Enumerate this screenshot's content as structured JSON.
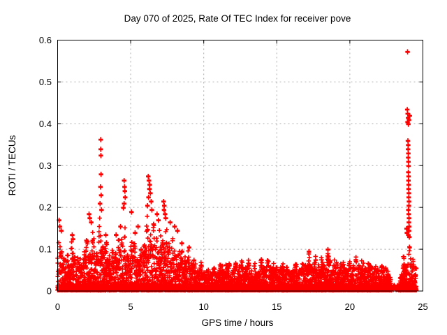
{
  "window": {
    "background": "#ffffff"
  },
  "chart_data": {
    "type": "scatter",
    "title": "Day 070 of 2025, Rate Of TEC Index for receiver pove",
    "xlabel": "GPS time / hours",
    "ylabel": "ROTI / TECUs",
    "xlim": [
      0,
      25
    ],
    "ylim": [
      0,
      0.6
    ],
    "xticks": [
      0,
      5,
      10,
      15,
      20,
      25
    ],
    "yticks": [
      0,
      0.1,
      0.2,
      0.3,
      0.4,
      0.5,
      0.6
    ],
    "grid": true,
    "legend": "none",
    "marker": {
      "symbol": "plus",
      "color": "#ff0000",
      "size": 7,
      "stroke_width": 1.6
    },
    "series_name": "ROTI",
    "description": "Dense cloud of ROTI samples near 0-0.1 TECU for 0-22.7h, quiet gap 22.8-23.3h, large spike column near end of day reaching 0.57",
    "envelope": [
      [
        0.0,
        0.13
      ],
      [
        0.1,
        0.17
      ],
      [
        0.3,
        0.14
      ],
      [
        0.5,
        0.1
      ],
      [
        0.8,
        0.12
      ],
      [
        1.0,
        0.135
      ],
      [
        1.3,
        0.1
      ],
      [
        1.6,
        0.09
      ],
      [
        1.9,
        0.13
      ],
      [
        2.1,
        0.17
      ],
      [
        2.4,
        0.16
      ],
      [
        2.7,
        0.13
      ],
      [
        2.9,
        0.19
      ],
      [
        3.0,
        0.17
      ],
      [
        3.2,
        0.14
      ],
      [
        3.5,
        0.12
      ],
      [
        3.8,
        0.1
      ],
      [
        4.0,
        0.13
      ],
      [
        4.3,
        0.15
      ],
      [
        4.6,
        0.18
      ],
      [
        4.8,
        0.12
      ],
      [
        5.0,
        0.14
      ],
      [
        5.3,
        0.13
      ],
      [
        5.6,
        0.1
      ],
      [
        5.9,
        0.15
      ],
      [
        6.1,
        0.18
      ],
      [
        6.3,
        0.2
      ],
      [
        6.6,
        0.17
      ],
      [
        6.9,
        0.18
      ],
      [
        7.1,
        0.15
      ],
      [
        7.3,
        0.18
      ],
      [
        7.6,
        0.16
      ],
      [
        7.9,
        0.14
      ],
      [
        8.2,
        0.12
      ],
      [
        8.5,
        0.11
      ],
      [
        8.8,
        0.1
      ],
      [
        9.1,
        0.1
      ],
      [
        9.4,
        0.08
      ],
      [
        9.7,
        0.075
      ],
      [
        10.0,
        0.065
      ],
      [
        10.5,
        0.06
      ],
      [
        11.0,
        0.07
      ],
      [
        11.5,
        0.08
      ],
      [
        12.0,
        0.07
      ],
      [
        12.5,
        0.08
      ],
      [
        13.0,
        0.075
      ],
      [
        13.5,
        0.065
      ],
      [
        14.0,
        0.08
      ],
      [
        14.5,
        0.085
      ],
      [
        15.0,
        0.07
      ],
      [
        15.5,
        0.075
      ],
      [
        16.0,
        0.065
      ],
      [
        16.5,
        0.075
      ],
      [
        17.0,
        0.09
      ],
      [
        17.5,
        0.09
      ],
      [
        18.0,
        0.08
      ],
      [
        18.5,
        0.1
      ],
      [
        19.0,
        0.085
      ],
      [
        19.5,
        0.08
      ],
      [
        20.0,
        0.075
      ],
      [
        20.5,
        0.09
      ],
      [
        21.0,
        0.08
      ],
      [
        21.5,
        0.085
      ],
      [
        22.0,
        0.07
      ],
      [
        22.3,
        0.065
      ],
      [
        22.6,
        0.055
      ],
      [
        22.75,
        0.04
      ],
      [
        22.85,
        0.015
      ],
      [
        23.3,
        0.015
      ],
      [
        23.45,
        0.05
      ],
      [
        23.7,
        0.09
      ],
      [
        23.9,
        0.115
      ],
      [
        24.1,
        0.125
      ],
      [
        24.3,
        0.11
      ],
      [
        24.5,
        0.09
      ],
      [
        24.55,
        0.07
      ]
    ],
    "outliers": [
      [
        0.1,
        0.17
      ],
      [
        0.15,
        0.155
      ],
      [
        0.25,
        0.145
      ],
      [
        1.0,
        0.135
      ],
      [
        1.05,
        0.125
      ],
      [
        2.15,
        0.185
      ],
      [
        2.2,
        0.175
      ],
      [
        2.3,
        0.165
      ],
      [
        2.93,
        0.25
      ],
      [
        2.95,
        0.363
      ],
      [
        2.95,
        0.34
      ],
      [
        2.96,
        0.325
      ],
      [
        2.97,
        0.28
      ],
      [
        2.98,
        0.23
      ],
      [
        2.9,
        0.21
      ],
      [
        3.0,
        0.195
      ],
      [
        3.3,
        0.135
      ],
      [
        4.0,
        0.135
      ],
      [
        4.3,
        0.155
      ],
      [
        4.55,
        0.265
      ],
      [
        4.58,
        0.25
      ],
      [
        4.6,
        0.24
      ],
      [
        4.62,
        0.225
      ],
      [
        4.55,
        0.21
      ],
      [
        4.5,
        0.2
      ],
      [
        5.05,
        0.19
      ],
      [
        5.3,
        0.14
      ],
      [
        5.5,
        0.155
      ],
      [
        6.2,
        0.275
      ],
      [
        6.25,
        0.265
      ],
      [
        6.3,
        0.255
      ],
      [
        6.28,
        0.245
      ],
      [
        6.35,
        0.235
      ],
      [
        6.22,
        0.225
      ],
      [
        6.4,
        0.215
      ],
      [
        6.15,
        0.205
      ],
      [
        6.45,
        0.195
      ],
      [
        6.8,
        0.185
      ],
      [
        6.9,
        0.17
      ],
      [
        7.25,
        0.215
      ],
      [
        7.3,
        0.205
      ],
      [
        7.28,
        0.195
      ],
      [
        7.35,
        0.185
      ],
      [
        7.4,
        0.175
      ],
      [
        7.7,
        0.165
      ],
      [
        8.0,
        0.155
      ],
      [
        8.2,
        0.145
      ],
      [
        8.5,
        0.115
      ],
      [
        9.0,
        0.105
      ],
      [
        17.2,
        0.095
      ],
      [
        18.5,
        0.1
      ],
      [
        22.45,
        0.055
      ],
      [
        22.5,
        0.05
      ],
      [
        23.95,
        0.573
      ],
      [
        23.93,
        0.435
      ],
      [
        23.96,
        0.425
      ],
      [
        23.98,
        0.415
      ],
      [
        23.95,
        0.405
      ],
      [
        24.0,
        0.4
      ],
      [
        24.05,
        0.41
      ],
      [
        24.1,
        0.42
      ],
      [
        23.97,
        0.36
      ],
      [
        23.99,
        0.35
      ],
      [
        23.98,
        0.34
      ],
      [
        24.0,
        0.33
      ],
      [
        23.99,
        0.32
      ],
      [
        24.01,
        0.31
      ],
      [
        24.02,
        0.3
      ],
      [
        24.0,
        0.285
      ],
      [
        24.02,
        0.275
      ],
      [
        24.01,
        0.265
      ],
      [
        24.03,
        0.255
      ],
      [
        24.02,
        0.245
      ],
      [
        24.04,
        0.235
      ],
      [
        24.03,
        0.225
      ],
      [
        24.05,
        0.215
      ],
      [
        24.04,
        0.205
      ],
      [
        24.0,
        0.195
      ],
      [
        24.03,
        0.185
      ],
      [
        24.05,
        0.175
      ],
      [
        24.04,
        0.165
      ],
      [
        24.06,
        0.155
      ],
      [
        24.05,
        0.145
      ],
      [
        24.0,
        0.135
      ],
      [
        24.07,
        0.13
      ],
      [
        23.9,
        0.14
      ],
      [
        23.88,
        0.15
      ]
    ],
    "data_gaps": [
      [
        22.85,
        23.35
      ],
      [
        24.55,
        25.0
      ]
    ],
    "max_point": [
      23.95,
      0.573
    ]
  },
  "axes_style": {
    "grid_color": "#a8a8a8",
    "border_color": "#000000",
    "text_color": "#000000"
  }
}
